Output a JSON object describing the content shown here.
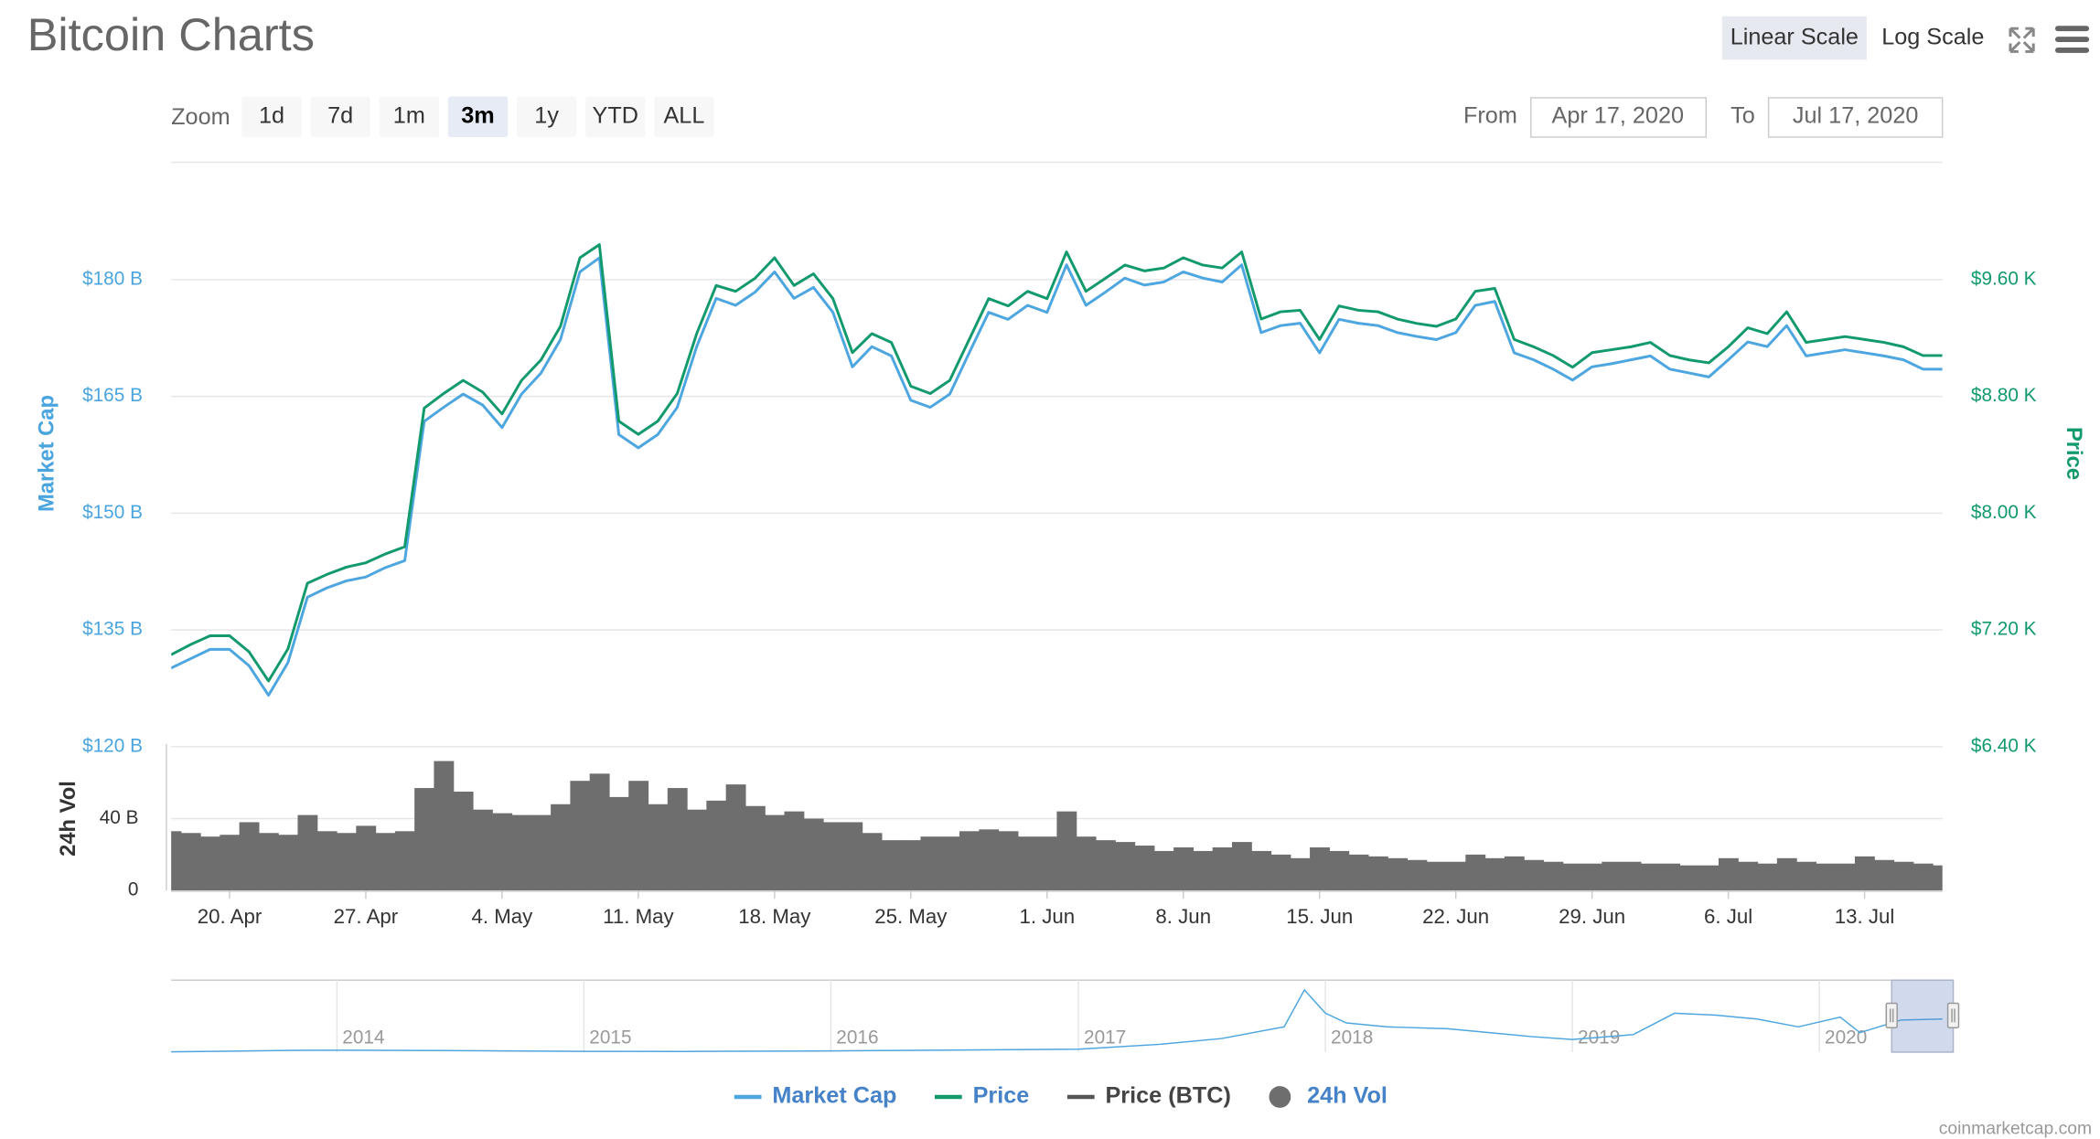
{
  "header": {
    "title": "Bitcoin Charts",
    "scale_buttons": [
      "Linear Scale",
      "Log Scale"
    ],
    "active_scale": 0
  },
  "toolbar": {
    "zoom_label": "Zoom",
    "zoom_buttons": [
      "1d",
      "7d",
      "1m",
      "3m",
      "1y",
      "YTD",
      "ALL"
    ],
    "active_zoom": 3,
    "from_label": "From",
    "from": "Apr 17, 2020",
    "to_label": "To",
    "to": "Jul 17, 2020"
  },
  "credit": "coinmarketcap.com",
  "chart_data": [
    {
      "type": "line",
      "y_label": "Market Cap",
      "y2_label": "Price",
      "grid": true,
      "xlim": [
        "2020-04-17",
        "2020-07-17"
      ],
      "x": [
        "2020-04-17",
        "2020-04-18",
        "2020-04-19",
        "2020-04-20",
        "2020-04-21",
        "2020-04-22",
        "2020-04-23",
        "2020-04-24",
        "2020-04-25",
        "2020-04-26",
        "2020-04-27",
        "2020-04-28",
        "2020-04-29",
        "2020-04-30",
        "2020-05-01",
        "2020-05-02",
        "2020-05-03",
        "2020-05-04",
        "2020-05-05",
        "2020-05-06",
        "2020-05-07",
        "2020-05-08",
        "2020-05-09",
        "2020-05-10",
        "2020-05-11",
        "2020-05-12",
        "2020-05-13",
        "2020-05-14",
        "2020-05-15",
        "2020-05-16",
        "2020-05-17",
        "2020-05-18",
        "2020-05-19",
        "2020-05-20",
        "2020-05-21",
        "2020-05-22",
        "2020-05-23",
        "2020-05-24",
        "2020-05-25",
        "2020-05-26",
        "2020-05-27",
        "2020-05-28",
        "2020-05-29",
        "2020-05-30",
        "2020-05-31",
        "2020-06-01",
        "2020-06-02",
        "2020-06-03",
        "2020-06-04",
        "2020-06-05",
        "2020-06-06",
        "2020-06-07",
        "2020-06-08",
        "2020-06-09",
        "2020-06-10",
        "2020-06-11",
        "2020-06-12",
        "2020-06-13",
        "2020-06-14",
        "2020-06-15",
        "2020-06-16",
        "2020-06-17",
        "2020-06-18",
        "2020-06-19",
        "2020-06-20",
        "2020-06-21",
        "2020-06-22",
        "2020-06-23",
        "2020-06-24",
        "2020-06-25",
        "2020-06-26",
        "2020-06-27",
        "2020-06-28",
        "2020-06-29",
        "2020-06-30",
        "2020-07-01",
        "2020-07-02",
        "2020-07-03",
        "2020-07-04",
        "2020-07-05",
        "2020-07-06",
        "2020-07-07",
        "2020-07-08",
        "2020-07-09",
        "2020-07-10",
        "2020-07-11",
        "2020-07-12",
        "2020-07-13",
        "2020-07-14",
        "2020-07-15",
        "2020-07-16",
        "2020-07-17"
      ],
      "ylim": [
        120,
        195
      ],
      "yticks": [
        {
          "value": 120,
          "label": "$120 B"
        },
        {
          "value": 135,
          "label": "$135 B"
        },
        {
          "value": 150,
          "label": "$150 B"
        },
        {
          "value": 165,
          "label": "$165 B"
        },
        {
          "value": 180,
          "label": "$180 B"
        }
      ],
      "y2lim": [
        6400,
        10400
      ],
      "y2ticks": [
        {
          "value": 6400,
          "label": "$6.40 K"
        },
        {
          "value": 7200,
          "label": "$7.20 K"
        },
        {
          "value": 8000,
          "label": "$8.00 K"
        },
        {
          "value": 8800,
          "label": "$8.80 K"
        },
        {
          "value": 9600,
          "label": "$9.60 K"
        }
      ],
      "series": [
        {
          "name": "Market Cap",
          "color": "#4da6e0",
          "values": [
            130.1,
            131.3,
            132.5,
            132.5,
            130.4,
            126.6,
            130.8,
            139.2,
            140.4,
            141.3,
            141.8,
            143.0,
            143.9,
            161.8,
            163.6,
            165.3,
            163.9,
            161.0,
            165.3,
            168.0,
            172.3,
            181.0,
            182.8,
            160.1,
            158.4,
            160.1,
            163.6,
            171.4,
            177.6,
            176.7,
            178.4,
            181.0,
            177.6,
            179.0,
            175.8,
            168.8,
            171.4,
            170.2,
            164.5,
            163.6,
            165.3,
            170.6,
            175.8,
            174.9,
            176.7,
            175.8,
            181.9,
            176.7,
            178.4,
            180.2,
            179.3,
            179.7,
            181.0,
            180.2,
            179.7,
            181.9,
            173.2,
            174.1,
            174.4,
            170.6,
            174.9,
            174.4,
            174.1,
            173.2,
            172.7,
            172.3,
            173.2,
            176.7,
            177.2,
            170.6,
            169.7,
            168.5,
            167.1,
            168.8,
            169.2,
            169.7,
            170.2,
            168.5,
            168.0,
            167.5,
            169.7,
            172.0,
            171.4,
            174.1,
            170.2,
            170.6,
            171.0,
            170.6,
            170.2,
            169.7,
            168.5,
            168.5
          ]
        },
        {
          "name": "Price",
          "color": "#129a6c",
          "axis": "y2",
          "values": [
            7030,
            7100,
            7160,
            7160,
            7050,
            6850,
            7070,
            7520,
            7580,
            7630,
            7660,
            7720,
            7770,
            8720,
            8820,
            8910,
            8830,
            8680,
            8910,
            9050,
            9280,
            9750,
            9840,
            8630,
            8540,
            8630,
            8820,
            9230,
            9560,
            9520,
            9610,
            9750,
            9560,
            9640,
            9470,
            9100,
            9230,
            9170,
            8870,
            8820,
            8910,
            9190,
            9470,
            9420,
            9520,
            9470,
            9790,
            9520,
            9610,
            9700,
            9660,
            9680,
            9750,
            9700,
            9680,
            9790,
            9330,
            9380,
            9390,
            9190,
            9420,
            9390,
            9380,
            9330,
            9300,
            9280,
            9330,
            9520,
            9540,
            9190,
            9140,
            9080,
            9000,
            9100,
            9120,
            9140,
            9170,
            9080,
            9050,
            9030,
            9140,
            9270,
            9230,
            9380,
            9170,
            9190,
            9210,
            9190,
            9170,
            9140,
            9080,
            9080
          ]
        },
        {
          "name": "Price (BTC)",
          "color": "#555555",
          "visible": false
        }
      ]
    },
    {
      "type": "bar",
      "y_label": "24h Vol",
      "xlim": [
        "2020-04-17",
        "2020-07-17"
      ],
      "x": [
        "2020-04-17",
        "2020-04-18",
        "2020-04-19",
        "2020-04-20",
        "2020-04-21",
        "2020-04-22",
        "2020-04-23",
        "2020-04-24",
        "2020-04-25",
        "2020-04-26",
        "2020-04-27",
        "2020-04-28",
        "2020-04-29",
        "2020-04-30",
        "2020-05-01",
        "2020-05-02",
        "2020-05-03",
        "2020-05-04",
        "2020-05-05",
        "2020-05-06",
        "2020-05-07",
        "2020-05-08",
        "2020-05-09",
        "2020-05-10",
        "2020-05-11",
        "2020-05-12",
        "2020-05-13",
        "2020-05-14",
        "2020-05-15",
        "2020-05-16",
        "2020-05-17",
        "2020-05-18",
        "2020-05-19",
        "2020-05-20",
        "2020-05-21",
        "2020-05-22",
        "2020-05-23",
        "2020-05-24",
        "2020-05-25",
        "2020-05-26",
        "2020-05-27",
        "2020-05-28",
        "2020-05-29",
        "2020-05-30",
        "2020-05-31",
        "2020-06-01",
        "2020-06-02",
        "2020-06-03",
        "2020-06-04",
        "2020-06-05",
        "2020-06-06",
        "2020-06-07",
        "2020-06-08",
        "2020-06-09",
        "2020-06-10",
        "2020-06-11",
        "2020-06-12",
        "2020-06-13",
        "2020-06-14",
        "2020-06-15",
        "2020-06-16",
        "2020-06-17",
        "2020-06-18",
        "2020-06-19",
        "2020-06-20",
        "2020-06-21",
        "2020-06-22",
        "2020-06-23",
        "2020-06-24",
        "2020-06-25",
        "2020-06-26",
        "2020-06-27",
        "2020-06-28",
        "2020-06-29",
        "2020-06-30",
        "2020-07-01",
        "2020-07-02",
        "2020-07-03",
        "2020-07-04",
        "2020-07-05",
        "2020-07-06",
        "2020-07-07",
        "2020-07-08",
        "2020-07-09",
        "2020-07-10",
        "2020-07-11",
        "2020-07-12",
        "2020-07-13",
        "2020-07-14",
        "2020-07-15",
        "2020-07-16",
        "2020-07-17"
      ],
      "xticks": [
        {
          "value": "2020-04-20",
          "label": "20. Apr"
        },
        {
          "value": "2020-04-27",
          "label": "27. Apr"
        },
        {
          "value": "2020-05-04",
          "label": "4. May"
        },
        {
          "value": "2020-05-11",
          "label": "11. May"
        },
        {
          "value": "2020-05-18",
          "label": "18. May"
        },
        {
          "value": "2020-05-25",
          "label": "25. May"
        },
        {
          "value": "2020-06-01",
          "label": "1. Jun"
        },
        {
          "value": "2020-06-08",
          "label": "8. Jun"
        },
        {
          "value": "2020-06-15",
          "label": "15. Jun"
        },
        {
          "value": "2020-06-22",
          "label": "22. Jun"
        },
        {
          "value": "2020-06-29",
          "label": "29. Jun"
        },
        {
          "value": "2020-07-06",
          "label": "6. Jul"
        },
        {
          "value": "2020-07-13",
          "label": "13. Jul"
        }
      ],
      "ylim": [
        0,
        80
      ],
      "yticks": [
        0,
        {
          "value": 40,
          "label": "40 B"
        }
      ],
      "grid": true,
      "series": [
        {
          "name": "24h Vol",
          "color": "#6e6e6e",
          "values": [
            33,
            32,
            30,
            31,
            38,
            32,
            31,
            42,
            33,
            32,
            36,
            32,
            33,
            57,
            72,
            55,
            45,
            43,
            42,
            42,
            48,
            61,
            65,
            52,
            61,
            48,
            57,
            45,
            50,
            59,
            47,
            42,
            44,
            40,
            38,
            38,
            32,
            28,
            28,
            30,
            30,
            33,
            34,
            33,
            30,
            30,
            44,
            30,
            28,
            27,
            25,
            22,
            24,
            22,
            24,
            27,
            22,
            20,
            18,
            24,
            22,
            20,
            19,
            18,
            17,
            16,
            16,
            20,
            18,
            19,
            17,
            16,
            15,
            15,
            16,
            16,
            15,
            15,
            14,
            14,
            18,
            16,
            15,
            18,
            16,
            15,
            15,
            19,
            17,
            16,
            15,
            14
          ]
        }
      ]
    },
    {
      "type": "navigator",
      "xlim": [
        "2013-05",
        "2020-07"
      ],
      "ylim": [
        0,
        370
      ],
      "x": [
        "2013-05",
        "2013-11",
        "2014-01",
        "2014-06",
        "2015-01",
        "2015-06",
        "2016-01",
        "2016-06",
        "2017-01",
        "2017-05",
        "2017-08",
        "2017-11",
        "2017-12",
        "2018-01",
        "2018-02",
        "2018-04",
        "2018-07",
        "2018-11",
        "2019-01",
        "2019-04",
        "2019-06",
        "2019-08",
        "2019-10",
        "2019-12",
        "2020-02",
        "2020-03",
        "2020-05",
        "2020-07"
      ],
      "xticks": [
        {
          "value": "2014-01",
          "label": "2014"
        },
        {
          "value": "2015-01",
          "label": "2015"
        },
        {
          "value": "2016-01",
          "label": "2016"
        },
        {
          "value": "2017-01",
          "label": "2017"
        },
        {
          "value": "2018-01",
          "label": "2018"
        },
        {
          "value": "2019-01",
          "label": "2019"
        },
        {
          "value": "2020-01",
          "label": "2020"
        }
      ],
      "series": [
        {
          "color": "#4da6e0",
          "values": [
            1.5,
            9,
            10,
            8,
            4,
            3.5,
            6,
            10,
            15,
            40,
            70,
            130,
            320,
            200,
            150,
            130,
            120,
            80,
            65,
            90,
            200,
            190,
            170,
            130,
            180,
            100,
            165,
            170
          ]
        }
      ]
    }
  ]
}
